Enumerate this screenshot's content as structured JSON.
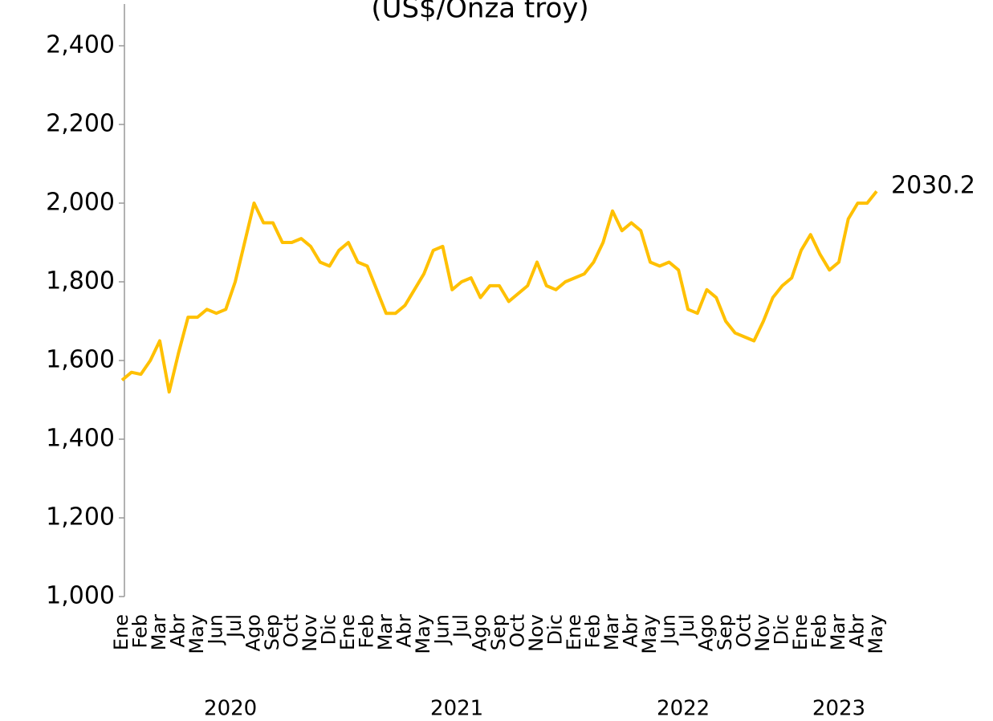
{
  "chart_data": {
    "type": "line",
    "title": "(US$/Onza troy)",
    "categories": [
      "Ene",
      null,
      "Feb",
      null,
      "Mar",
      null,
      "Abr",
      null,
      "May",
      null,
      "Jun",
      null,
      "Jul",
      null,
      "Ago",
      null,
      "Sep",
      null,
      "Oct",
      null,
      "Nov",
      null,
      "Dic",
      null,
      "Ene",
      null,
      "Feb",
      null,
      "Mar",
      null,
      "Abr",
      null,
      "May",
      null,
      "Jun",
      null,
      "Jul",
      null,
      "Ago",
      null,
      "Sep",
      null,
      "Oct",
      null,
      "Nov",
      null,
      "Dic",
      null,
      "Ene",
      null,
      "Feb",
      null,
      "Mar",
      null,
      "Abr",
      null,
      "May",
      null,
      "Jun",
      null,
      "Jul",
      null,
      "Ago",
      null,
      "Sep",
      null,
      "Oct",
      null,
      "Nov",
      null,
      "Dic",
      null,
      "Ene",
      null,
      "Feb",
      null,
      "Mar",
      null,
      "Abr",
      null,
      "May"
    ],
    "year_groups": [
      {
        "label": "2020",
        "first": 0,
        "last": 23
      },
      {
        "label": "2021",
        "first": 24,
        "last": 47
      },
      {
        "label": "2022",
        "first": 48,
        "last": 71
      },
      {
        "label": "2023",
        "first": 72,
        "last": 80
      }
    ],
    "series": [
      {
        "color": "#FFC000",
        "values": [
          1550,
          1570,
          1565,
          1600,
          1650,
          1520,
          1620,
          1710,
          1710,
          1730,
          1720,
          1730,
          1800,
          1900,
          2000,
          1950,
          1950,
          1900,
          1900,
          1910,
          1890,
          1850,
          1840,
          1880,
          1900,
          1850,
          1840,
          1780,
          1720,
          1720,
          1740,
          1780,
          1820,
          1880,
          1890,
          1780,
          1800,
          1810,
          1760,
          1790,
          1790,
          1750,
          1770,
          1790,
          1850,
          1790,
          1780,
          1800,
          1810,
          1820,
          1850,
          1900,
          1980,
          1930,
          1950,
          1930,
          1850,
          1840,
          1850,
          1830,
          1730,
          1720,
          1780,
          1760,
          1700,
          1670,
          1660,
          1650,
          1700,
          1760,
          1790,
          1810,
          1880,
          1920,
          1870,
          1830,
          1850,
          1960,
          2000,
          2000,
          2030.2
        ]
      }
    ],
    "annotation": "2030.2",
    "ylim": [
      1000,
      2400
    ],
    "yticks": [
      {
        "value": 1000,
        "label": "1,000"
      },
      {
        "value": 1200,
        "label": "1,200"
      },
      {
        "value": 1400,
        "label": "1,400"
      },
      {
        "value": 1600,
        "label": "1,600"
      },
      {
        "value": 1800,
        "label": "1,800"
      },
      {
        "value": 2000,
        "label": "2,000"
      },
      {
        "value": 2200,
        "label": "2,200"
      },
      {
        "value": 2400,
        "label": "2,400"
      }
    ]
  }
}
